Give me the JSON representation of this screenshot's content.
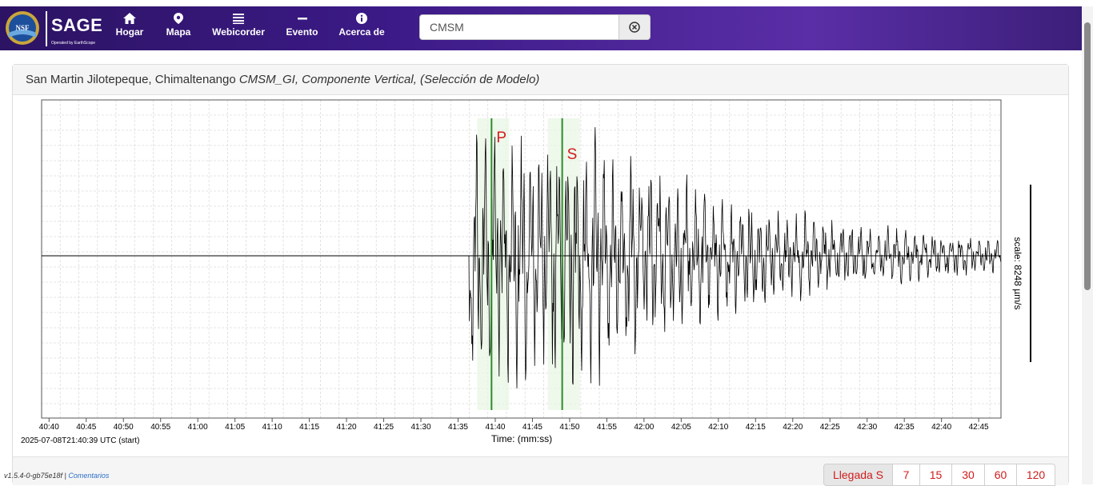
{
  "navbar": {
    "logo_text": "NSF",
    "brand": "SAGE",
    "brand_sub": "Operated by EarthScope",
    "items": [
      {
        "label": "Hogar",
        "icon": "home-icon"
      },
      {
        "label": "Mapa",
        "icon": "map-pin-icon"
      },
      {
        "label": "Webicorder",
        "icon": "list-icon"
      },
      {
        "label": "Evento",
        "icon": "minus-icon"
      },
      {
        "label": "Acerca de",
        "icon": "info-icon"
      }
    ],
    "search": {
      "value": "CMSM",
      "clear_icon": "clear-circle-icon"
    }
  },
  "panel": {
    "title_plain": "San Martin Jilotepeque, Chimaltenango ",
    "title_italic": "CMSM_GI, Componente Vertical, (Selección de Modelo)"
  },
  "chart_data": {
    "type": "line",
    "title": "",
    "xlabel": "Time: (mm:ss)",
    "start_label": "2025-07-08T21:40:39 UTC (start)",
    "scale_label": "scale: 8248 µm/s",
    "x_ticks": [
      "40:40",
      "40:45",
      "40:50",
      "40:55",
      "41:00",
      "41:05",
      "41:10",
      "41:15",
      "41:20",
      "41:25",
      "41:30",
      "41:35",
      "41:40",
      "41:45",
      "41:50",
      "41:55",
      "42:00",
      "42:05",
      "42:10",
      "42:15",
      "42:20",
      "42:25",
      "42:30",
      "42:35",
      "42:40",
      "42:45"
    ],
    "xlim_seconds": [
      39,
      168
    ],
    "phases": [
      {
        "label": "P",
        "time_s": 99.5,
        "color": "#2e8b2e",
        "label_color": "#d01c1c"
      },
      {
        "label": "S",
        "time_s": 109.0,
        "color": "#2e8b2e",
        "label_color": "#d01c1c"
      }
    ],
    "grid": true
  },
  "footer": {
    "version": "v1.5.4-0-gb75e18f | ",
    "feedback": "Comentarios",
    "buttons": [
      "Llegada S",
      "7",
      "15",
      "30",
      "60",
      "120"
    ]
  }
}
